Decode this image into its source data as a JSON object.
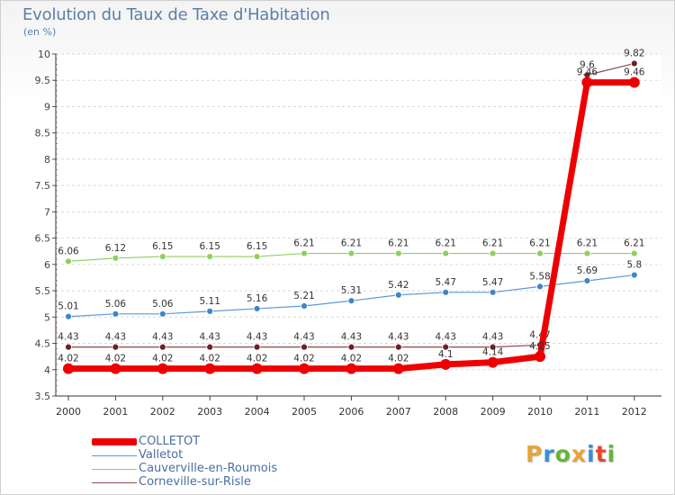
{
  "header": {
    "title": "Evolution du Taux de Taxe d'Habitation",
    "unit": "(en %)"
  },
  "logo": {
    "letters": [
      {
        "c": "P",
        "color": "#e8a33a"
      },
      {
        "c": "r",
        "color": "#3b8fd6"
      },
      {
        "c": "o",
        "color": "#6ab33c"
      },
      {
        "c": "x",
        "color": "#e8a33a"
      },
      {
        "c": "i",
        "color": "#3b8fd6"
      },
      {
        "c": "t",
        "color": "#e04a2b"
      },
      {
        "c": "i",
        "color": "#6ab33c"
      }
    ]
  },
  "chart_data": {
    "type": "line",
    "title": "Evolution du Taux de Taxe d'Habitation",
    "ylabel": "(en %)",
    "xlabel": "",
    "ylim": [
      3.5,
      10
    ],
    "yticks": [
      "3.5",
      "4",
      "4.5",
      "5",
      "5.5",
      "6",
      "6.5",
      "7",
      "7.5",
      "8",
      "8.5",
      "9",
      "9.5",
      "10"
    ],
    "categories": [
      "2000",
      "2001",
      "2002",
      "2003",
      "2004",
      "2005",
      "2006",
      "2007",
      "2008",
      "2009",
      "2010",
      "2011",
      "2012"
    ],
    "series": [
      {
        "name": "Cauverville-en-Roumois",
        "color": "#8fcf5f",
        "point": "#8fcf5f",
        "width": 1.2,
        "r": 3.5,
        "values": [
          6.06,
          6.12,
          6.15,
          6.15,
          6.15,
          6.21,
          6.21,
          6.21,
          6.21,
          6.21,
          6.21,
          6.21,
          6.21
        ],
        "labels": [
          "6.06",
          "6.12",
          "6.15",
          "6.15",
          "6.15",
          "6.21",
          "6.21",
          "6.21",
          "6.21",
          "6.21",
          "6.21",
          "6.21",
          "6.21"
        ]
      },
      {
        "name": "Valletot",
        "color": "#5b9ad5",
        "point": "#3f86c8",
        "width": 1.2,
        "r": 3.5,
        "values": [
          5.01,
          5.06,
          5.06,
          5.11,
          5.16,
          5.21,
          5.31,
          5.42,
          5.47,
          5.47,
          5.58,
          5.69,
          5.8
        ],
        "labels": [
          "5.01",
          "5.06",
          "5.06",
          "5.11",
          "5.16",
          "5.21",
          "5.31",
          "5.42",
          "5.47",
          "5.47",
          "5.58",
          "5.69",
          "5.8"
        ]
      },
      {
        "name": "Corneville-sur-Risle",
        "color": "#8c4a4f",
        "point": "#6e1f26",
        "width": 1.2,
        "r": 3.5,
        "values": [
          4.43,
          4.43,
          4.43,
          4.43,
          4.43,
          4.43,
          4.43,
          4.43,
          4.43,
          4.43,
          4.47,
          9.6,
          9.82
        ],
        "labels": [
          "4.43",
          "4.43",
          "4.43",
          "4.43",
          "4.43",
          "4.43",
          "4.43",
          "4.43",
          "4.43",
          "4.43",
          "4.47",
          "9.6",
          "9.82"
        ]
      },
      {
        "name": "COLLETOT",
        "color": "#ee0000",
        "point": "#ee0000",
        "width": 7,
        "r": 6,
        "values": [
          4.02,
          4.02,
          4.02,
          4.02,
          4.02,
          4.02,
          4.02,
          4.02,
          4.1,
          4.14,
          4.25,
          9.46,
          9.46
        ],
        "labels": [
          "4.02",
          "4.02",
          "4.02",
          "4.02",
          "4.02",
          "4.02",
          "4.02",
          "4.02",
          "4.1",
          "4.14",
          "4.25",
          "9.46",
          "9.46"
        ]
      }
    ],
    "legend_order": [
      "COLLETOT",
      "Valletot",
      "Cauverville-en-Roumois",
      "Corneville-sur-Risle"
    ]
  }
}
